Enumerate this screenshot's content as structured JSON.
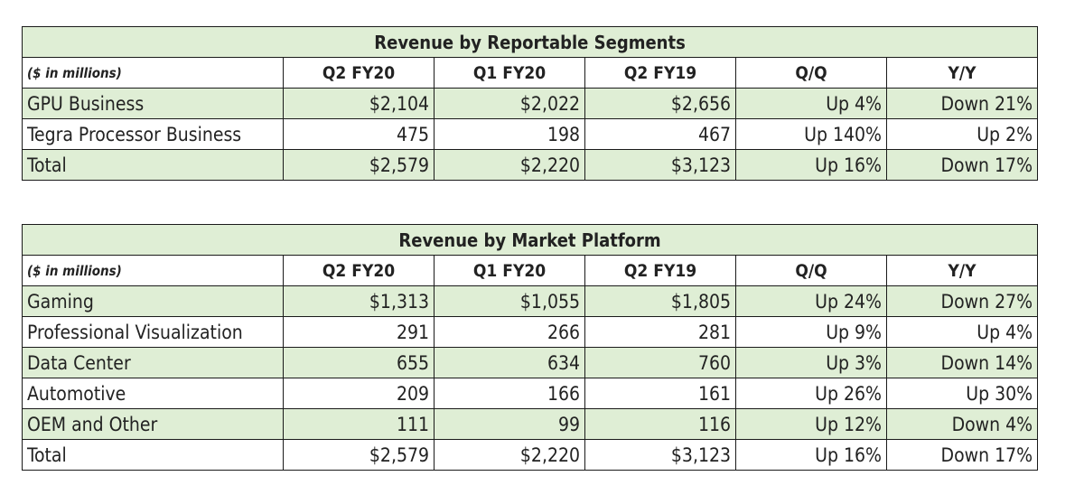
{
  "segments_table": {
    "title": "Revenue by Reportable Segments",
    "unit_label": "($ in millions)",
    "columns": [
      "Q2 FY20",
      "Q1 FY20",
      "Q2 FY19",
      "Q/Q",
      "Y/Y"
    ],
    "rows": [
      {
        "label": "GPU Business",
        "values": [
          "$2,104",
          "$2,022",
          "$2,656",
          "Up 4%",
          "Down 21%"
        ]
      },
      {
        "label": "Tegra Processor Business",
        "values": [
          "475",
          "198",
          "467",
          "Up 140%",
          "Up 2%"
        ]
      },
      {
        "label": "Total",
        "values": [
          "$2,579",
          "$2,220",
          "$3,123",
          "Up 16%",
          "Down 17%"
        ]
      }
    ]
  },
  "platform_table": {
    "title": "Revenue by Market Platform",
    "unit_label": "($ in millions)",
    "columns": [
      "Q2 FY20",
      "Q1 FY20",
      "Q2 FY19",
      "Q/Q",
      "Y/Y"
    ],
    "rows": [
      {
        "label": "Gaming",
        "values": [
          "$1,313",
          "$1,055",
          "$1,805",
          "Up 24%",
          "Down 27%"
        ]
      },
      {
        "label": "Professional Visualization",
        "values": [
          "291",
          "266",
          "281",
          "Up 9%",
          "Up 4%"
        ]
      },
      {
        "label": "Data Center",
        "values": [
          "655",
          "634",
          "760",
          "Up 3%",
          "Down 14%"
        ]
      },
      {
        "label": "Automotive",
        "values": [
          "209",
          "166",
          "161",
          "Up 26%",
          "Up 30%"
        ]
      },
      {
        "label": "OEM and Other",
        "values": [
          "111",
          "99",
          "116",
          "Up 12%",
          "Down 4%"
        ]
      },
      {
        "label": "Total",
        "values": [
          "$2,579",
          "$2,220",
          "$3,123",
          "Up 16%",
          "Down 17%"
        ]
      }
    ]
  },
  "colors": {
    "header_fill": "#dfeed5",
    "border": "#1a1a1a"
  }
}
